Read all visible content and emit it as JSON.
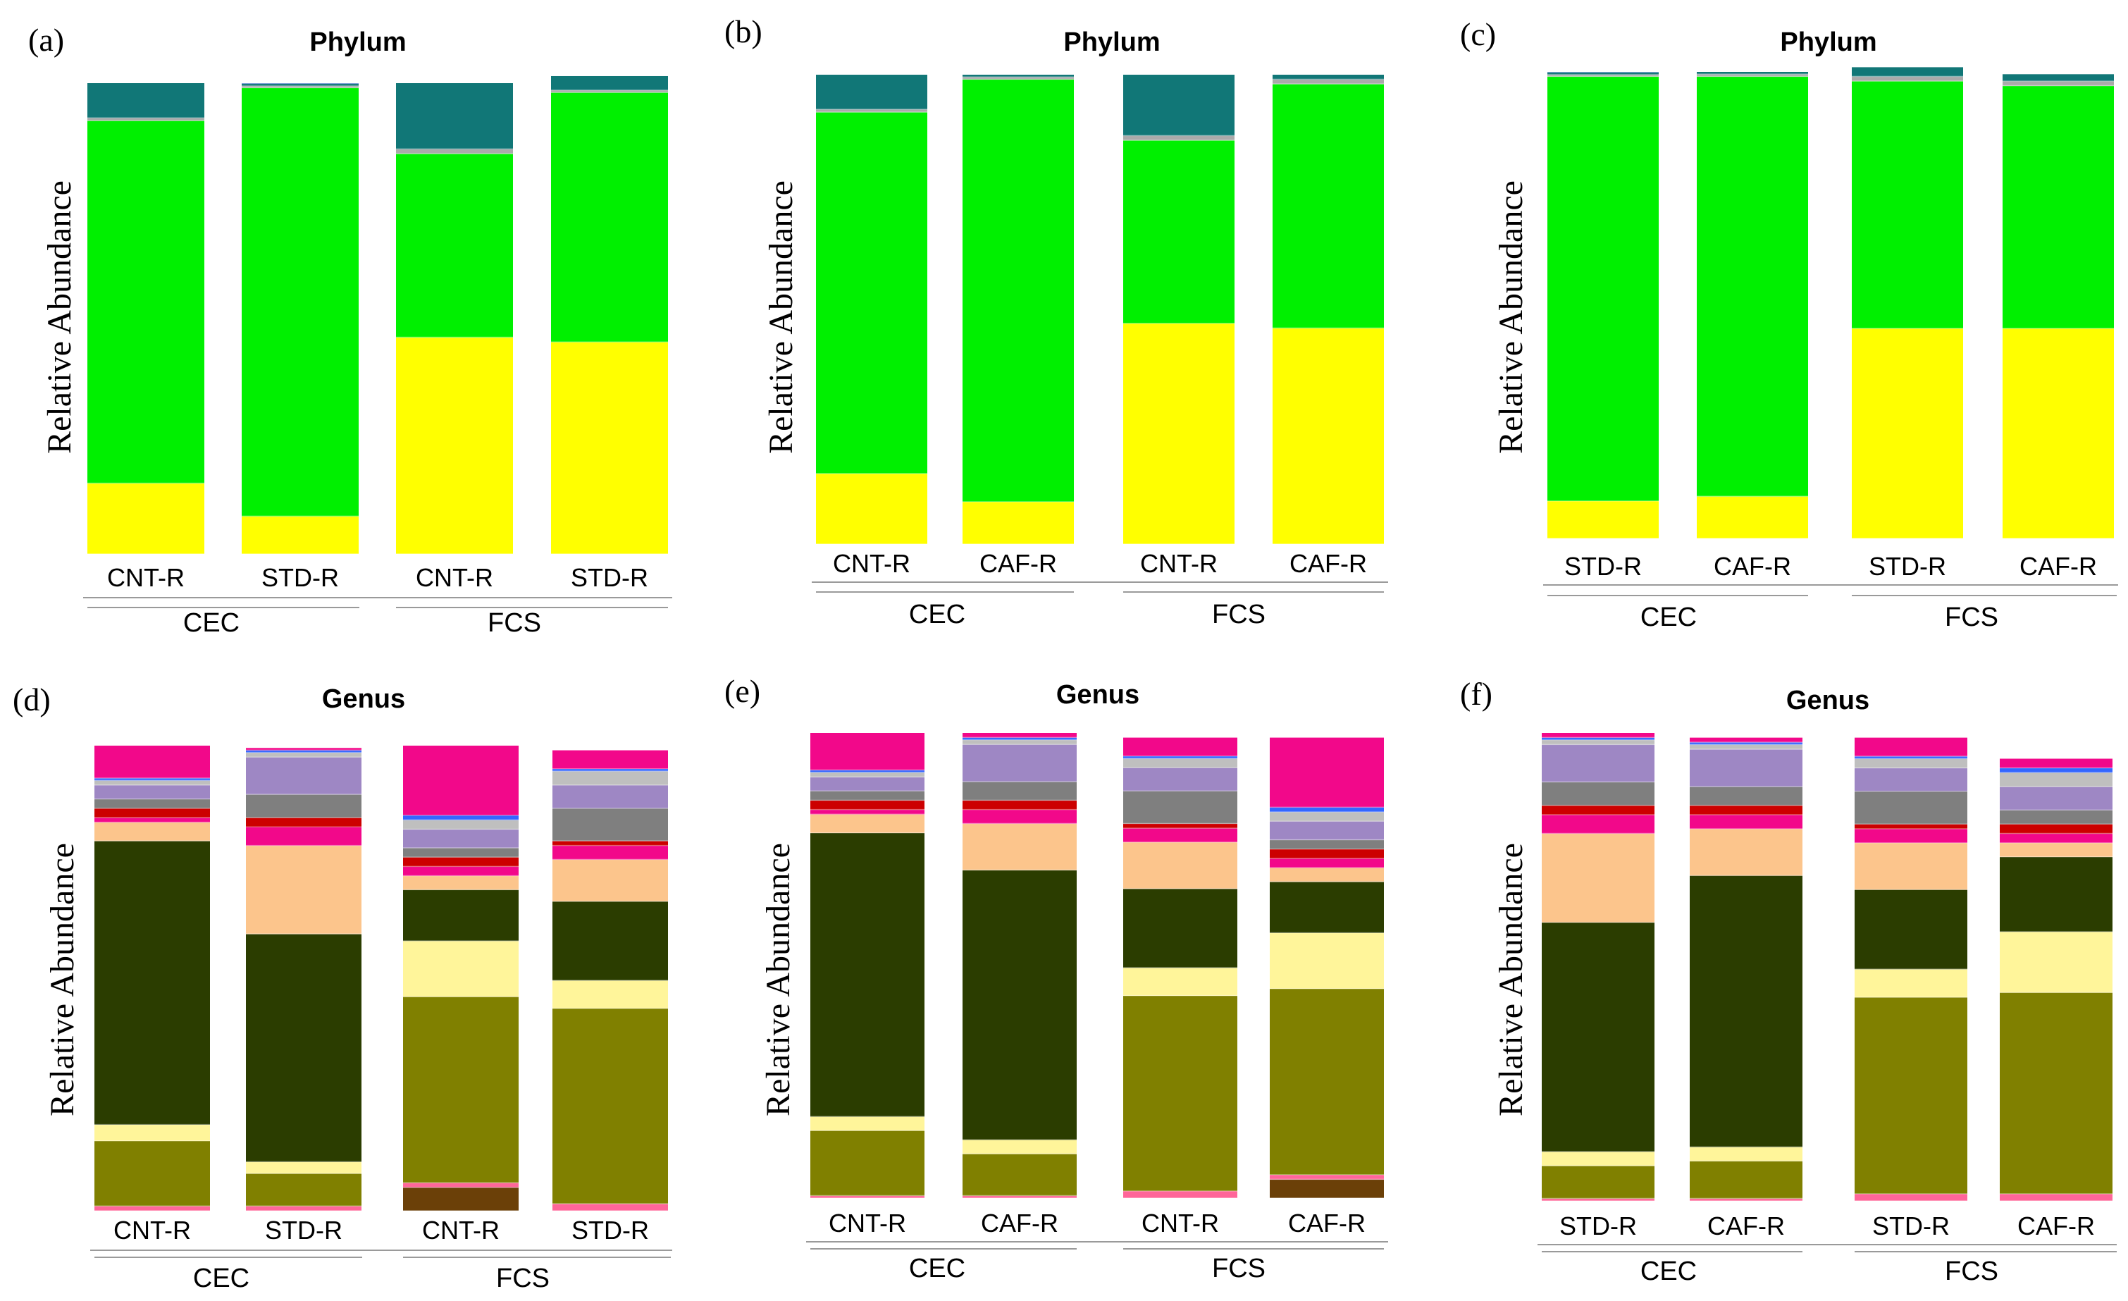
{
  "figure": {
    "panel_letters": [
      "(a)",
      "(b)",
      "(c)",
      "(d)",
      "(e)",
      "(f)"
    ],
    "phylum_colors": [
      "#ffff00",
      "#00f000",
      "#aaaaaa",
      "#117777",
      "#2255cc"
    ],
    "genus_colors": [
      "#6b4008",
      "#ff6699",
      "#808000",
      "#fff59a",
      "#2b3d00",
      "#fcc58c",
      "#f2088a",
      "#cc0000",
      "#7f7f7f",
      "#9e87c4",
      "#bfbfbf",
      "#3366ff"
    ]
  },
  "chart_data": [
    {
      "id": "a",
      "type": "bar",
      "stacked": true,
      "title": "Phylum",
      "ylabel": "Relative Abundance",
      "categories": [
        "CNT-R",
        "STD-R",
        "CNT-R",
        "STD-R"
      ],
      "groups": [
        {
          "label": "CEC",
          "span": [
            0,
            1
          ]
        },
        {
          "label": "FCS",
          "span": [
            2,
            3
          ]
        }
      ],
      "series": [
        {
          "name": "yellow",
          "values": [
            15,
            8,
            46,
            45
          ]
        },
        {
          "name": "green",
          "values": [
            77,
            91,
            39,
            53
          ]
        },
        {
          "name": "grey",
          "values": [
            0.6,
            0.4,
            1,
            0.5
          ]
        },
        {
          "name": "teal",
          "values": [
            7.4,
            0.5,
            14,
            3
          ]
        },
        {
          "name": "blue",
          "values": [
            0,
            0.1,
            0,
            0
          ]
        }
      ],
      "ylim": [
        0,
        100
      ]
    },
    {
      "id": "b",
      "type": "bar",
      "stacked": true,
      "title": "Phylum",
      "ylabel": "Relative Abundance",
      "categories": [
        "CNT-R",
        "CAF-R",
        "CNT-R",
        "CAF-R"
      ],
      "groups": [
        {
          "label": "CEC",
          "span": [
            0,
            1
          ]
        },
        {
          "label": "FCS",
          "span": [
            2,
            3
          ]
        }
      ],
      "series": [
        {
          "name": "yellow",
          "values": [
            15,
            9,
            47,
            46
          ]
        },
        {
          "name": "green",
          "values": [
            77,
            90,
            39,
            52
          ]
        },
        {
          "name": "grey",
          "values": [
            0.6,
            0.5,
            1,
            1
          ]
        },
        {
          "name": "teal",
          "values": [
            7.4,
            0.5,
            13,
            1
          ]
        },
        {
          "name": "blue",
          "values": [
            0,
            0,
            0,
            0
          ]
        }
      ],
      "ylim": [
        0,
        100
      ]
    },
    {
      "id": "c",
      "type": "bar",
      "stacked": true,
      "title": "Phylum",
      "ylabel": "Relative Abundance",
      "categories": [
        "STD-R",
        "CAF-R",
        "STD-R",
        "CAF-R"
      ],
      "groups": [
        {
          "label": "CEC",
          "span": [
            0,
            1
          ]
        },
        {
          "label": "FCS",
          "span": [
            2,
            3
          ]
        }
      ],
      "series": [
        {
          "name": "yellow",
          "values": [
            8,
            9,
            45,
            45
          ]
        },
        {
          "name": "green",
          "values": [
            91,
            90,
            53,
            52
          ]
        },
        {
          "name": "grey",
          "values": [
            0.4,
            0.5,
            1,
            1
          ]
        },
        {
          "name": "teal",
          "values": [
            0.5,
            0.5,
            2,
            1.5
          ]
        },
        {
          "name": "blue",
          "values": [
            0.1,
            0,
            0,
            0
          ]
        }
      ],
      "ylim": [
        0,
        100
      ]
    },
    {
      "id": "d",
      "type": "bar",
      "stacked": true,
      "title": "Genus",
      "ylabel": "Relative Abundance",
      "categories": [
        "CNT-R",
        "STD-R",
        "CNT-R",
        "STD-R"
      ],
      "groups": [
        {
          "label": "CEC",
          "span": [
            0,
            1
          ]
        },
        {
          "label": "FCS",
          "span": [
            2,
            3
          ]
        }
      ],
      "series": [
        {
          "name": "brown",
          "values": [
            0,
            0,
            5,
            0
          ]
        },
        {
          "name": "pink",
          "values": [
            1,
            1,
            1,
            1.5
          ]
        },
        {
          "name": "olive",
          "values": [
            14,
            7,
            40,
            42
          ]
        },
        {
          "name": "light yellow",
          "values": [
            3.5,
            2.5,
            12,
            6
          ]
        },
        {
          "name": "dark green",
          "values": [
            61,
            49,
            11,
            17
          ]
        },
        {
          "name": "peach",
          "values": [
            4,
            19,
            3,
            9
          ]
        },
        {
          "name": "magenta",
          "values": [
            1,
            4,
            2,
            3
          ]
        },
        {
          "name": "red",
          "values": [
            2,
            2,
            2,
            1
          ]
        },
        {
          "name": "grey",
          "values": [
            2,
            5,
            2,
            7
          ]
        },
        {
          "name": "purple",
          "values": [
            3,
            8,
            4,
            5
          ]
        },
        {
          "name": "silver",
          "values": [
            1,
            1,
            2,
            3
          ]
        },
        {
          "name": "blue",
          "values": [
            0.5,
            0.5,
            1,
            0.5
          ]
        },
        {
          "name": "top magenta",
          "values": [
            7,
            0.5,
            15,
            4
          ]
        }
      ],
      "ylim": [
        0,
        100
      ]
    },
    {
      "id": "e",
      "type": "bar",
      "stacked": true,
      "title": "Genus",
      "ylabel": "Relative Abundance",
      "categories": [
        "CNT-R",
        "CAF-R",
        "CNT-R",
        "CAF-R"
      ],
      "groups": [
        {
          "label": "CEC",
          "span": [
            0,
            1
          ]
        },
        {
          "label": "FCS",
          "span": [
            2,
            3
          ]
        }
      ],
      "series": [
        {
          "name": "brown",
          "values": [
            0,
            0,
            0,
            4
          ]
        },
        {
          "name": "pink",
          "values": [
            0.5,
            0.5,
            1.5,
            1
          ]
        },
        {
          "name": "olive",
          "values": [
            14,
            9,
            42,
            40
          ]
        },
        {
          "name": "light yellow",
          "values": [
            3,
            3,
            6,
            12
          ]
        },
        {
          "name": "dark green",
          "values": [
            61,
            58,
            17,
            11
          ]
        },
        {
          "name": "peach",
          "values": [
            4,
            10,
            10,
            3
          ]
        },
        {
          "name": "magenta",
          "values": [
            1,
            3,
            3,
            2
          ]
        },
        {
          "name": "red",
          "values": [
            2,
            2,
            1,
            2
          ]
        },
        {
          "name": "grey",
          "values": [
            2,
            4,
            7,
            2
          ]
        },
        {
          "name": "purple",
          "values": [
            3,
            8,
            5,
            4
          ]
        },
        {
          "name": "silver",
          "values": [
            1,
            1,
            2,
            2
          ]
        },
        {
          "name": "blue",
          "values": [
            0.5,
            0.5,
            0.5,
            1
          ]
        },
        {
          "name": "top magenta",
          "values": [
            8,
            1,
            4,
            15
          ]
        }
      ],
      "ylim": [
        0,
        100
      ]
    },
    {
      "id": "f",
      "type": "bar",
      "stacked": true,
      "title": "Genus",
      "ylabel": "Relative Abundance",
      "categories": [
        "STD-R",
        "CAF-R",
        "STD-R",
        "CAF-R"
      ],
      "groups": [
        {
          "label": "CEC",
          "span": [
            0,
            1
          ]
        },
        {
          "label": "FCS",
          "span": [
            2,
            3
          ]
        }
      ],
      "series": [
        {
          "name": "brown",
          "values": [
            0,
            0,
            0,
            0
          ]
        },
        {
          "name": "pink",
          "values": [
            0.5,
            0.5,
            1.5,
            1.5
          ]
        },
        {
          "name": "olive",
          "values": [
            7,
            8,
            42,
            43
          ]
        },
        {
          "name": "light yellow",
          "values": [
            3,
            3,
            6,
            13
          ]
        },
        {
          "name": "dark green",
          "values": [
            49,
            58,
            17,
            16
          ]
        },
        {
          "name": "peach",
          "values": [
            19,
            10,
            10,
            3
          ]
        },
        {
          "name": "magenta",
          "values": [
            4,
            3,
            3,
            2
          ]
        },
        {
          "name": "red",
          "values": [
            2,
            2,
            1,
            2
          ]
        },
        {
          "name": "grey",
          "values": [
            5,
            4,
            7,
            3
          ]
        },
        {
          "name": "purple",
          "values": [
            8,
            8,
            5,
            5
          ]
        },
        {
          "name": "silver",
          "values": [
            1,
            1,
            2,
            3
          ]
        },
        {
          "name": "blue",
          "values": [
            0.5,
            0.5,
            0.5,
            1
          ]
        },
        {
          "name": "top magenta",
          "values": [
            1,
            1,
            4,
            2
          ]
        }
      ],
      "ylim": [
        0,
        100
      ]
    }
  ]
}
